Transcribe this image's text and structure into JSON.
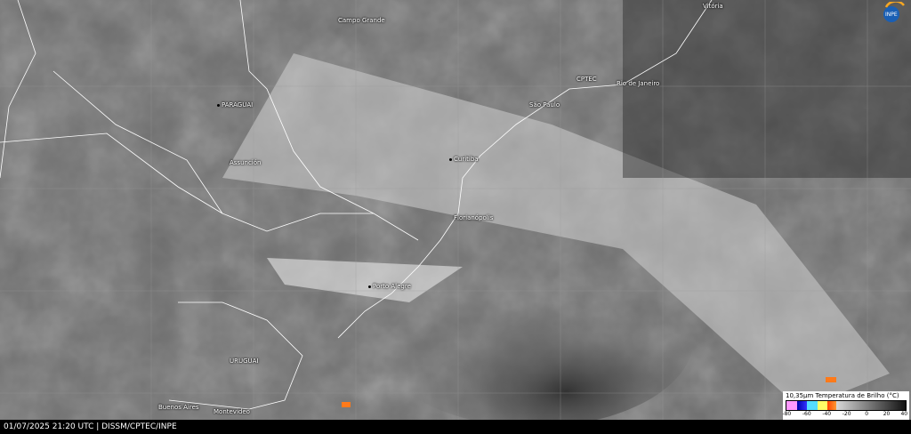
{
  "footer": {
    "text": "01/07/2025 21:20 UTC | DISSM/CPTEC/INPE"
  },
  "legend": {
    "title": "10,35µm Temperatura de Brilho (°C)",
    "ticks": [
      "-80",
      "-60",
      "-40",
      "-20",
      "0",
      "20",
      "40"
    ],
    "colors": [
      "#ff99ff",
      "#0000ee",
      "#33ccff",
      "#ffff66",
      "#ff5500",
      "#cccccc",
      "#111111"
    ]
  },
  "cities": [
    {
      "name": "Campo Grande"
    },
    {
      "name": "Vitória"
    },
    {
      "name": "CPTEC"
    },
    {
      "name": "Rio de Janeiro"
    },
    {
      "name": "São Paulo"
    },
    {
      "name": "PARAGUAI"
    },
    {
      "name": "Curitiba"
    },
    {
      "name": "Assunción"
    },
    {
      "name": "Florianópolis"
    },
    {
      "name": "Porto Alegre"
    },
    {
      "name": "URUGUAI"
    },
    {
      "name": "Buenos Aires"
    },
    {
      "name": "Montevideo"
    }
  ],
  "logo": {
    "text": "INPE"
  }
}
